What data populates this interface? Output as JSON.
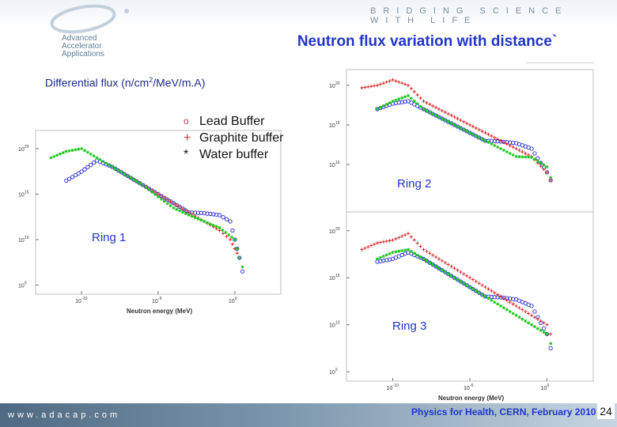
{
  "header": {
    "tagline": "BRIDGING SCIENCE WITH LIFE",
    "logo_text": [
      "Advanced",
      "Accelerator",
      "Applications"
    ]
  },
  "slide": {
    "title": "Neutron flux variation with distance`",
    "ylabel_main": "Differential flux (n/cm",
    "ylabel_sup": "2",
    "ylabel_rest": "/MeV/m.A)"
  },
  "legend": [
    {
      "symbol": "o",
      "label": "Lead Buffer",
      "color": "#2a2ad0"
    },
    {
      "symbol": "+",
      "label": "Graphite buffer",
      "color": "#d11f1f"
    },
    {
      "symbol": "*",
      "label": "Water buffer",
      "color": "#19c619"
    }
  ],
  "colors": {
    "lead": "#2a2ad0",
    "graphite": "#d11f1f",
    "water": "#19c619"
  },
  "footer": {
    "url": "www.adacap.com",
    "event": "Physics for Health, CERN, February 2010",
    "page": "24"
  },
  "chart_data": [
    {
      "type": "scatter",
      "label": "Ring 1",
      "xlabel": "Neutron energy (MeV)",
      "ylabel": "",
      "xscale": "log",
      "yscale": "log",
      "xlim": [
        1e-13,
        1000.0
      ],
      "ylim": [
        10000.0,
        1e+22
      ],
      "xticks": [
        {
          "value": 1e-10,
          "label": "10",
          "exp": "-10"
        },
        {
          "value": 1e-05,
          "label": "10",
          "exp": "-5"
        },
        {
          "value": 1,
          "label": "10",
          "exp": "0"
        }
      ],
      "yticks": [
        {
          "value": 100000.0,
          "label": "10",
          "exp": "5"
        },
        {
          "value": 10000000000.0,
          "label": "10",
          "exp": "10"
        },
        {
          "value": 1000000000000000.0,
          "label": "10",
          "exp": "15"
        },
        {
          "value": 1e+20,
          "label": "10",
          "exp": "20"
        }
      ],
      "series": [
        {
          "name": "Lead Buffer",
          "color": "#2a2ad0",
          "marker": "o",
          "x": [
            1e-11,
            1e-10,
            1e-09,
            1e-08,
            1e-07,
            1e-06,
            1e-05,
            0.0001,
            0.001,
            0.01,
            0.1,
            0.5,
            1,
            2,
            5
          ],
          "y": [
            3e+16,
            3e+17,
            5e+18,
            1e+18,
            1e+17,
            1e+16,
            1000000000000000.0,
            100000000000000.0,
            10000000000000.0,
            8000000000000.0,
            5000000000000.0,
            1000000000000.0,
            10000000000.0,
            100000000.0,
            100000.0
          ]
        },
        {
          "name": "Graphite buffer",
          "color": "#d11f1f",
          "marker": "+",
          "x": [
            1e-07,
            1e-06,
            1e-05,
            0.0001,
            0.001,
            0.01,
            0.1,
            0.5,
            1,
            2
          ],
          "y": [
            1e+17,
            1e+16,
            1000000000000000.0,
            100000000000000.0,
            10000000000000.0,
            1000000000000.0,
            100000000000.0,
            10000000000.0,
            1000000000.0,
            100000000.0
          ]
        },
        {
          "name": "Water buffer",
          "color": "#19c619",
          "marker": "*",
          "x": [
            1e-12,
            1e-11,
            1e-10,
            1e-09,
            1e-08,
            1e-07,
            1e-06,
            1e-05,
            0.0001,
            0.001,
            0.01,
            0.1,
            1,
            2,
            5
          ],
          "y": [
            1e+19,
            5e+19,
            1e+20,
            1e+19,
            1e+18,
            1e+17,
            1e+16,
            500000000000000.0,
            30000000000000.0,
            5000000000000.0,
            1000000000000.0,
            200000000000.0,
            10000000000.0,
            100000000.0,
            1000000.0
          ]
        }
      ]
    },
    {
      "type": "scatter",
      "label": "Ring 2",
      "xscale": "log",
      "yscale": "log",
      "ylim": [
        10000.0,
        1e+22
      ],
      "yticks": [
        {
          "value": 10000000000.0,
          "label": "10",
          "exp": "10"
        },
        {
          "value": 1000000000000000.0,
          "label": "10",
          "exp": "15"
        },
        {
          "value": 1e+20,
          "label": "10",
          "exp": "20"
        }
      ],
      "series": [
        {
          "name": "Lead Buffer",
          "color": "#2a2ad0",
          "marker": "o",
          "x": [
            1e-11,
            1e-10,
            1e-09,
            1e-08,
            1e-07,
            1e-06,
            1e-05,
            0.0001,
            0.001,
            0.01,
            0.1,
            1,
            3
          ],
          "y": [
            1e+17,
            5e+17,
            1e+18,
            1e+17,
            1e+16,
            1000000000000000.0,
            100000000000000.0,
            10000000000000.0,
            8000000000000.0,
            5000000000000.0,
            1000000000000.0,
            1000000000.0,
            10000000.0
          ]
        },
        {
          "name": "Graphite buffer",
          "color": "#d11f1f",
          "marker": "+",
          "x": [
            1e-12,
            1e-11,
            1e-10,
            1e-09,
            1e-08,
            1e-07,
            1e-06,
            1e-05,
            0.0001,
            0.001,
            0.01,
            0.1,
            1,
            3
          ],
          "y": [
            5e+19,
            1e+20,
            5e+20,
            1e+20,
            1e+18,
            1e+17,
            1e+16,
            1000000000000000.0,
            100000000000000.0,
            10000000000000.0,
            1000000000000.0,
            100000000000.0,
            1000000000.0,
            10000000.0
          ]
        },
        {
          "name": "Water buffer",
          "color": "#19c619",
          "marker": "*",
          "x": [
            1e-11,
            1e-10,
            1e-09,
            1e-08,
            1e-07,
            1e-06,
            1e-05,
            0.0001,
            0.001,
            0.01,
            0.1,
            1,
            3
          ],
          "y": [
            1e+17,
            1e+18,
            5e+18,
            1e+17,
            1e+16,
            1000000000000000.0,
            100000000000000.0,
            10000000000000.0,
            1000000000000.0,
            100000000000.0,
            80000000000.0,
            5000000000.0,
            10000000.0
          ]
        }
      ]
    },
    {
      "type": "scatter",
      "label": "Ring 3",
      "xlabel": "Neutron energy (MeV)",
      "xscale": "log",
      "yscale": "log",
      "xlim": [
        1e-13,
        1000.0
      ],
      "ylim": [
        10000.0,
        1e+22
      ],
      "xticks": [
        {
          "value": 1e-10,
          "label": "10",
          "exp": "-10"
        },
        {
          "value": 1e-05,
          "label": "10",
          "exp": "-5"
        },
        {
          "value": 1,
          "label": "10",
          "exp": "0"
        }
      ],
      "yticks": [
        {
          "value": 100000.0,
          "label": "10",
          "exp": "5"
        },
        {
          "value": 10000000000.0,
          "label": "10",
          "exp": "10"
        },
        {
          "value": 1000000000000000.0,
          "label": "10",
          "exp": "15"
        },
        {
          "value": 1e+20,
          "label": "10",
          "exp": "20"
        }
      ],
      "series": [
        {
          "name": "Lead Buffer",
          "color": "#2a2ad0",
          "marker": "o",
          "x": [
            1e-11,
            1e-10,
            1e-09,
            1e-08,
            1e-07,
            1e-06,
            1e-05,
            0.0001,
            0.001,
            0.01,
            0.1,
            1,
            3
          ],
          "y": [
            5e+16,
            1e+17,
            5e+17,
            1e+17,
            1e+16,
            1000000000000000.0,
            100000000000000.0,
            10000000000000.0,
            8000000000000.0,
            5000000000000.0,
            1000000000000.0,
            1000000000.0,
            1000000.0
          ]
        },
        {
          "name": "Graphite buffer",
          "color": "#d11f1f",
          "marker": "+",
          "x": [
            1e-12,
            1e-11,
            1e-10,
            1e-09,
            1e-08,
            1e-07,
            1e-06,
            1e-05,
            0.0001,
            0.001,
            0.01,
            0.1,
            1,
            3
          ],
          "y": [
            1e+18,
            5e+18,
            1e+19,
            5e+19,
            1e+18,
            1e+17,
            1e+16,
            1000000000000000.0,
            100000000000000.0,
            10000000000000.0,
            1000000000000.0,
            100000000000.0,
            10000000000.0,
            100000000.0
          ]
        },
        {
          "name": "Water buffer",
          "color": "#19c619",
          "marker": "*",
          "x": [
            1e-11,
            1e-10,
            1e-09,
            1e-08,
            1e-07,
            1e-06,
            1e-05,
            0.0001,
            0.001,
            0.01,
            0.1,
            1,
            3
          ],
          "y": [
            1e+17,
            5e+17,
            1e+18,
            1e+17,
            1e+16,
            1000000000000000.0,
            100000000000000.0,
            10000000000000.0,
            1000000000000.0,
            100000000000.0,
            10000000000.0,
            1000000000.0,
            10000000.0
          ]
        }
      ]
    }
  ]
}
